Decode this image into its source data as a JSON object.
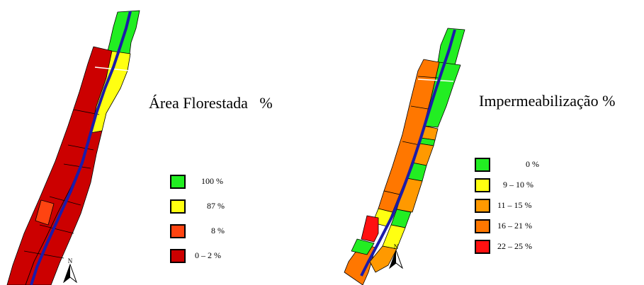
{
  "colors": {
    "green": "#22ee22",
    "yellow": "#ffff11",
    "light_orange": "#ff9900",
    "orange": "#ff7700",
    "red_orange": "#ff4411",
    "red": "#ff1111",
    "dark_red": "#cc0000",
    "river": "#1b1baa",
    "outline": "#000000"
  },
  "north_label": "N",
  "maps": [
    {
      "title": "Área Florestada   %",
      "legend": [
        {
          "label": "100 %",
          "color": "#22ee22"
        },
        {
          "label": "87 %",
          "color": "#ffff11"
        },
        {
          "label": "8 %",
          "color": "#ff4411"
        },
        {
          "label": "0 – 2 %",
          "color": "#cc0000"
        }
      ]
    },
    {
      "title": "Impermeabilização %",
      "legend": [
        {
          "label": "0 %",
          "color": "#22ee22"
        },
        {
          "label": "9 – 10 %",
          "color": "#ffff11"
        },
        {
          "label": "11 – 15 %",
          "color": "#ff9900"
        },
        {
          "label": "16 – 21 %",
          "color": "#ff7700"
        },
        {
          "label": "22 – 25 %",
          "color": "#ff1111"
        }
      ]
    }
  ]
}
